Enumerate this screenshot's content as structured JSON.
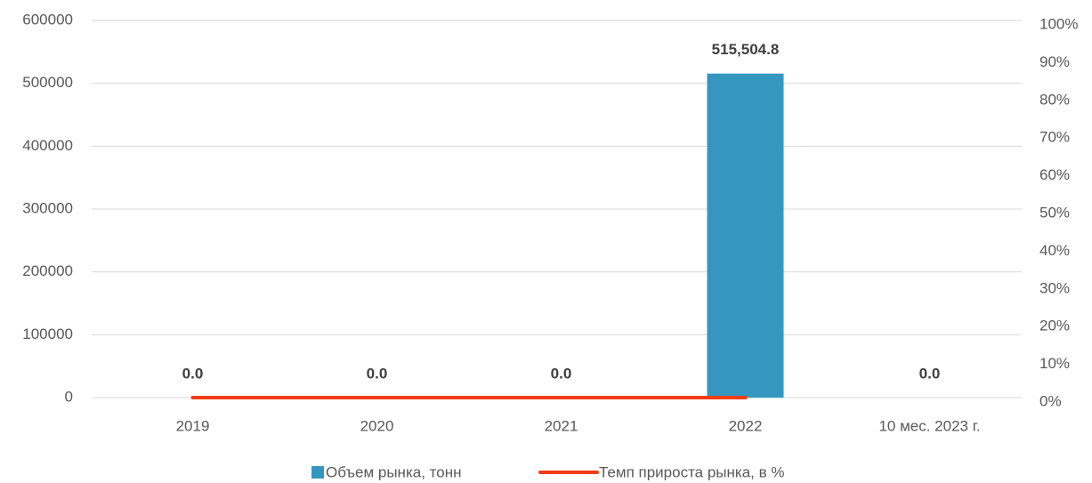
{
  "chart_data": {
    "type": "bar",
    "categories": [
      "2019",
      "2020",
      "2021",
      "2022",
      "10 мес. 2023 г."
    ],
    "series": [
      {
        "name": "Объем рынка, тонн",
        "type": "bar",
        "color": "#3597bf",
        "values": [
          0,
          0,
          0,
          515504.8,
          0
        ],
        "value_labels": [
          "0.0",
          "0.0",
          "0.0",
          "515,504.8",
          "0.0"
        ]
      },
      {
        "name": "Темп прироста рынка, в %",
        "type": "line",
        "axis": "y2",
        "color": "#f23c14",
        "values": [
          0,
          0,
          0,
          0,
          null
        ]
      }
    ],
    "ylim": [
      0,
      600000
    ],
    "yticks": [
      0,
      100000,
      200000,
      300000,
      400000,
      500000,
      600000
    ],
    "y2lim": [
      0,
      100
    ],
    "y2ticks": [
      {
        "value": 0,
        "label": "0%"
      },
      {
        "value": 10,
        "label": "10%"
      },
      {
        "value": 20,
        "label": "20%"
      },
      {
        "value": 30,
        "label": "30%"
      },
      {
        "value": 40,
        "label": "40%"
      },
      {
        "value": 50,
        "label": "50%"
      },
      {
        "value": 60,
        "label": "60%"
      },
      {
        "value": 70,
        "label": "70%"
      },
      {
        "value": 80,
        "label": "80%"
      },
      {
        "value": 90,
        "label": "90%"
      },
      {
        "value": 100,
        "label": "100%"
      }
    ],
    "grid": true
  }
}
